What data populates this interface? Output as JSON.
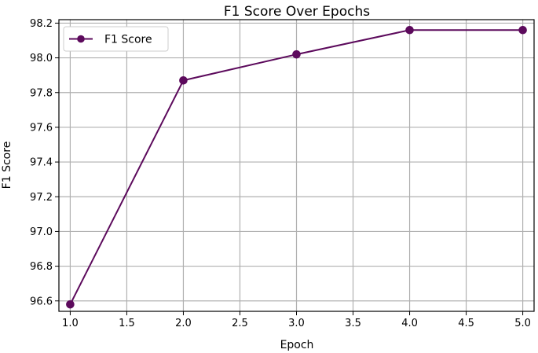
{
  "chart_data": {
    "type": "line",
    "title": "F1 Score Over Epochs",
    "xlabel": "Epoch",
    "ylabel": "F1 Score",
    "xlim": [
      0.9,
      5.1
    ],
    "ylim": [
      96.54,
      98.22
    ],
    "xticks": [
      1.0,
      1.5,
      2.0,
      2.5,
      3.0,
      3.5,
      4.0,
      4.5,
      5.0
    ],
    "xtick_labels": [
      "1.0",
      "1.5",
      "2.0",
      "2.5",
      "3.0",
      "3.5",
      "4.0",
      "4.5",
      "5.0"
    ],
    "yticks": [
      96.6,
      96.8,
      97.0,
      97.2,
      97.4,
      97.6,
      97.8,
      98.0,
      98.2
    ],
    "ytick_labels": [
      "96.6",
      "96.8",
      "97.0",
      "97.2",
      "97.4",
      "97.6",
      "97.8",
      "98.0",
      "98.2"
    ],
    "grid": true,
    "legend_position": "top-left",
    "series": [
      {
        "name": "F1 Score",
        "color": "#5c0a5c",
        "marker": "circle",
        "x": [
          1,
          2,
          3,
          4,
          5
        ],
        "y": [
          96.58,
          97.87,
          98.02,
          98.16,
          98.16
        ]
      }
    ]
  }
}
